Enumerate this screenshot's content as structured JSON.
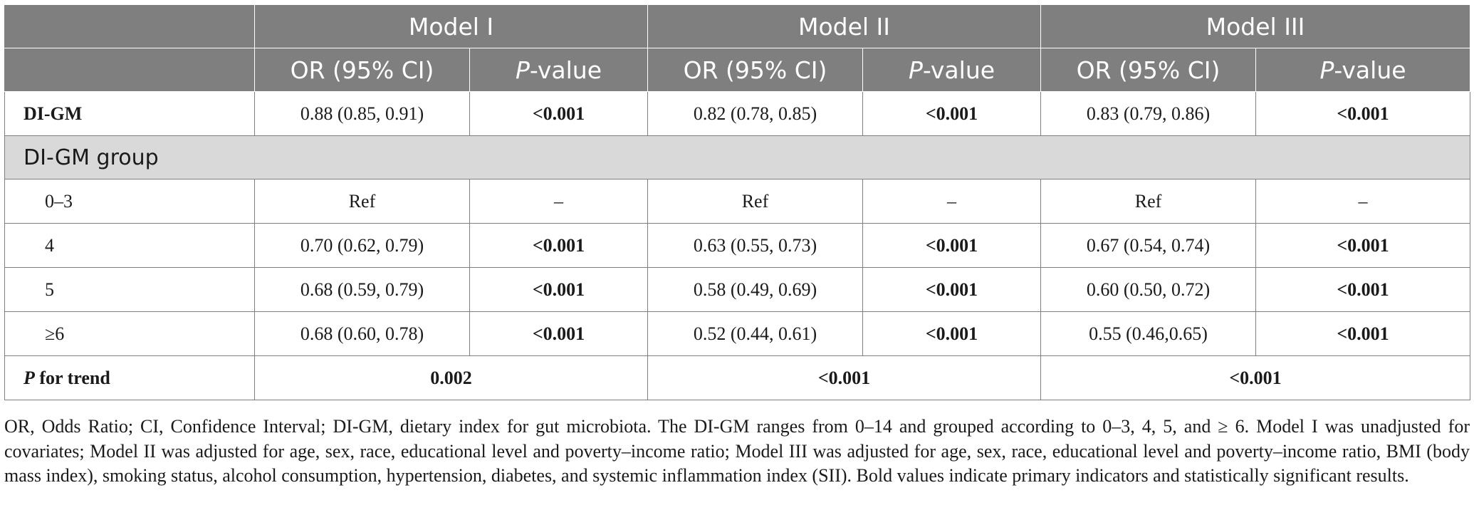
{
  "header": {
    "models": [
      "Model I",
      "Model II",
      "Model III"
    ],
    "or_label": "OR (95% CI)",
    "p_label_italic": "P",
    "p_label_rest": "-value"
  },
  "rows": [
    {
      "label": "DI-GM",
      "or1": "0.88 (0.85, 0.91)",
      "p1": "<0.001",
      "or2": "0.82 (0.78, 0.85)",
      "p2": "<0.001",
      "or3": "0.83 (0.79, 0.86)",
      "p3": "<0.001"
    },
    {
      "label": "0–3",
      "or1": "Ref",
      "p1": "–",
      "or2": "Ref",
      "p2": "–",
      "or3": "Ref",
      "p3": "–"
    },
    {
      "label": "4",
      "or1": "0.70 (0.62, 0.79)",
      "p1": "<0.001",
      "or2": "0.63 (0.55, 0.73)",
      "p2": "<0.001",
      "or3": "0.67 (0.54, 0.74)",
      "p3": "<0.001"
    },
    {
      "label": "5",
      "or1": "0.68 (0.59, 0.79)",
      "p1": "<0.001",
      "or2": "0.58 (0.49, 0.69)",
      "p2": "<0.001",
      "or3": "0.60 (0.50, 0.72)",
      "p3": "<0.001"
    },
    {
      "label": "≥6",
      "or1": "0.68 (0.60, 0.78)",
      "p1": "<0.001",
      "or2": "0.52 (0.44, 0.61)",
      "p2": "<0.001",
      "or3": "0.55 (0.46,0.65)",
      "p3": "<0.001"
    }
  ],
  "group_label": "DI-GM group",
  "trend": {
    "label_italic": "P",
    "label_rest": " for trend",
    "m1": "0.002",
    "m2": "<0.001",
    "m3": "<0.001"
  },
  "footnote": "OR, Odds Ratio; CI, Confidence Interval; DI-GM, dietary index for gut microbiota. The DI-GM ranges from 0–14 and grouped according to 0–3, 4, 5, and ≥ 6. Model I was unadjusted for covariates; Model II was adjusted for age, sex, race, educational level and poverty–income ratio; Model III was adjusted for age, sex, race, educational level and poverty–income ratio, BMI (body mass index), smoking status, alcohol consumption, hypertension, diabetes, and systemic inflammation index (SII). Bold values indicate primary indicators and statistically significant results.",
  "colors": {
    "header_bg": "#7f7f7f",
    "group_bg": "#d9d9d9",
    "border": "#7f7f7f"
  }
}
